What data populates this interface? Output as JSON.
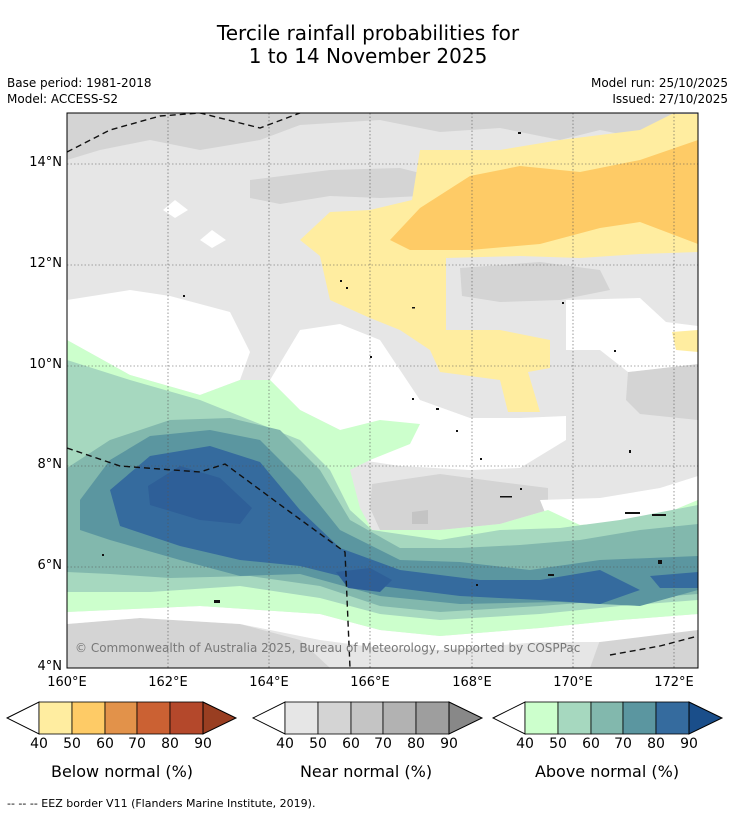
{
  "title_line1": "Tercile rainfall probabilities for",
  "title_line2": "1 to 14 November 2025",
  "base_period": "Base period: 1981-2018",
  "model": "Model: ACCESS-S2",
  "model_run": "Model run: 25/10/2025",
  "issued": "Issued: 27/10/2025",
  "copyright": "© Commonwealth of Australia 2025, Bureau of Meteorology, supported by COSPPac",
  "lat_ticks": [
    "14°N",
    "12°N",
    "10°N",
    "8°N",
    "6°N",
    "4°N"
  ],
  "lon_ticks": [
    "160°E",
    "162°E",
    "164°E",
    "166°E",
    "168°E",
    "170°E",
    "172°E"
  ],
  "colorbars": {
    "below": {
      "title": "Below normal (%)",
      "labels": [
        "40",
        "50",
        "60",
        "70",
        "80",
        "90"
      ],
      "colors": [
        "#ffeda0",
        "#fecb66",
        "#e2924a",
        "#cb6133",
        "#b4482b",
        "#993e21"
      ]
    },
    "near": {
      "title": "Near normal (%)",
      "labels": [
        "40",
        "50",
        "60",
        "70",
        "80",
        "90"
      ],
      "colors": [
        "#e6e6e6",
        "#d4d4d4",
        "#c4c4c4",
        "#b2b2b2",
        "#9e9e9e",
        "#888888"
      ]
    },
    "above": {
      "title": "Above normal (%)",
      "labels": [
        "40",
        "50",
        "60",
        "70",
        "80",
        "90"
      ],
      "colors": [
        "#ccffcc",
        "#a6d8bf",
        "#82b8ad",
        "#5b96a0",
        "#356b9e",
        "#1a4e8a"
      ]
    }
  },
  "footnote": "--  --  -- EEZ border V11 (Flanders Marine Institute, 2019)."
}
